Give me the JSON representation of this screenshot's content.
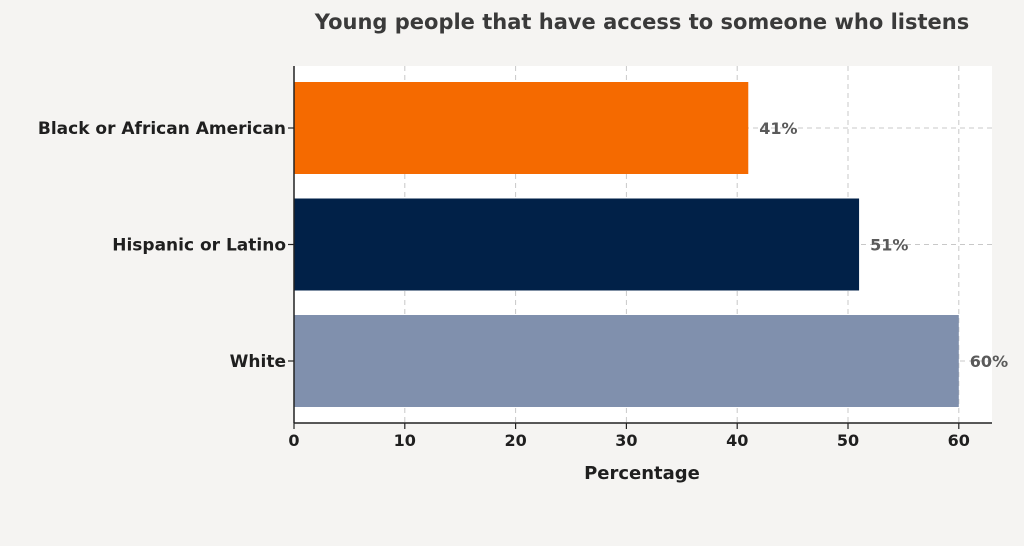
{
  "chart_data": {
    "type": "bar",
    "orientation": "horizontal",
    "title": "Young people that have access to someone who listens",
    "xlabel": "Percentage",
    "ylabel": "",
    "xlim": [
      0,
      63
    ],
    "xticks": [
      0,
      10,
      20,
      30,
      40,
      50,
      60
    ],
    "grid": true,
    "categories": [
      "Black or African American",
      "Hispanic or Latino",
      "White"
    ],
    "values": [
      41,
      51,
      60
    ],
    "data_labels": [
      "41%",
      "51%",
      "60%"
    ],
    "colors": [
      "#f56a00",
      "#012148",
      "#8090ad"
    ]
  }
}
